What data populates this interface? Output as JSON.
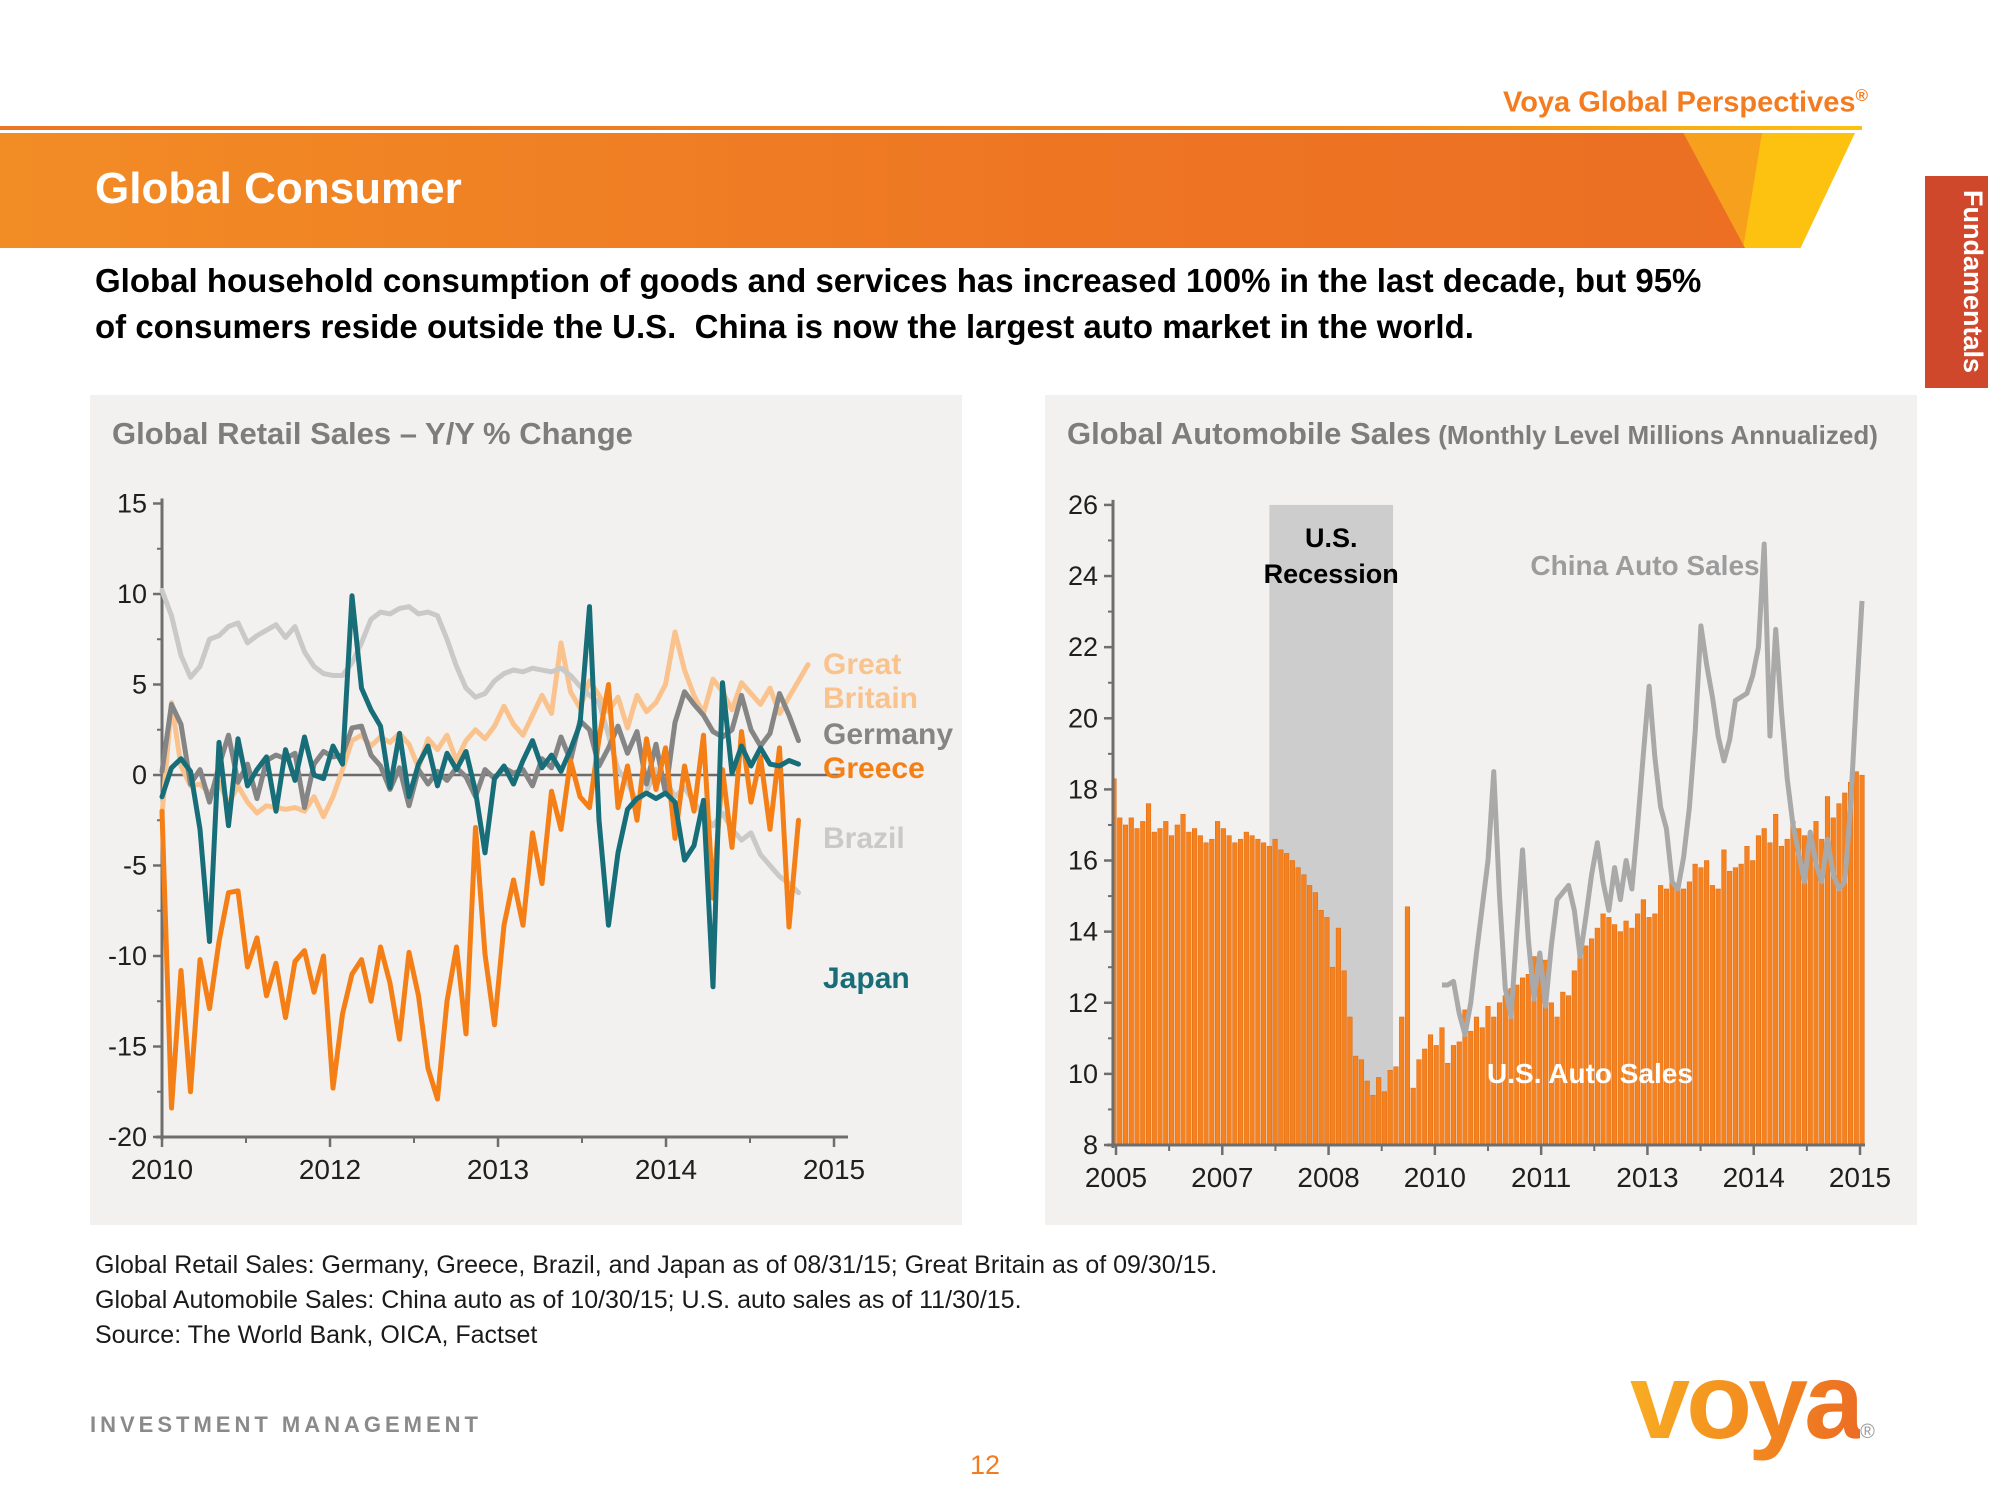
{
  "header": {
    "brand": "Voya Global Perspectives",
    "brand_reg": "®",
    "page_title": "Global Consumer",
    "side_tab": "Fundamentals",
    "subtitle": "Global household consumption of goods and services has increased 100% in the last decade, but 95%\nof consumers reside outside the U.S.  China is now the largest auto market in the world.",
    "accent_orange": "#EE7623",
    "accent_yellow": "#FDC110",
    "tab_color": "#D0482B"
  },
  "chart_data": [
    {
      "type": "line",
      "title": "Global Retail Sales – Y/Y % Change",
      "x_tick_labels": [
        "2010",
        "2012",
        "2013",
        "2014",
        "2015"
      ],
      "ylabel": "",
      "xlabel": "",
      "ylim": [
        -20,
        15
      ],
      "y_ticks": [
        15,
        10,
        5,
        0,
        -5,
        -10,
        -15,
        -20
      ],
      "grid": false,
      "zero_line": true,
      "legend_position": "right-outside",
      "series": [
        {
          "name": "Great Britain",
          "label_lines": [
            "Great",
            "Britain"
          ],
          "color": "#FAC38D",
          "values": [
            -2.2,
            4.0,
            0.5,
            -0.6,
            -0.5,
            -1.0,
            -0.4,
            -1.6,
            -0.6,
            -1.5,
            -2.1,
            -1.7,
            -1.8,
            -1.9,
            -1.8,
            -2.0,
            -1.2,
            -2.3,
            -1.2,
            0.3,
            1.9,
            2.2,
            1.6,
            2.1,
            1.8,
            2.3,
            1.7,
            0.4,
            2.0,
            1.4,
            2.2,
            0.8,
            1.9,
            2.5,
            2.0,
            2.7,
            3.8,
            2.8,
            2.2,
            3.3,
            4.4,
            3.4,
            7.3,
            4.6,
            3.7,
            5.2,
            4.4,
            3.5,
            4.3,
            2.6,
            4.4,
            3.5,
            4.0,
            5.0,
            7.9,
            5.8,
            4.4,
            3.4,
            5.3,
            4.6,
            3.6,
            5.1,
            4.5,
            3.9,
            4.8,
            3.4,
            4.3,
            5.2,
            6.1
          ]
        },
        {
          "name": "Brazil",
          "label_lines": [
            "Brazil"
          ],
          "color": "#C9C9C9",
          "values": [
            10.2,
            8.8,
            6.6,
            5.4,
            6.0,
            7.5,
            7.7,
            8.2,
            8.4,
            7.3,
            7.7,
            8.0,
            8.3,
            7.6,
            8.2,
            6.8,
            6.0,
            5.6,
            5.5,
            5.5,
            6.2,
            7.3,
            8.6,
            9.0,
            8.9,
            9.2,
            9.3,
            8.9,
            9.0,
            8.8,
            7.5,
            6.0,
            4.8,
            4.3,
            4.5,
            5.2,
            5.6,
            5.8,
            5.7,
            5.9,
            5.8,
            5.7,
            5.9,
            5.5,
            4.9,
            4.4,
            4.0,
            2.2,
            0.3,
            -0.4,
            -1.5,
            -0.9,
            0.3,
            -0.3,
            -1.2,
            -0.7,
            -1.5,
            -2.2,
            -2.8,
            -2.1,
            -3.0,
            -3.6,
            -3.2,
            -4.4,
            -5.0,
            -5.6,
            -6.0,
            -6.5
          ]
        },
        {
          "name": "Germany",
          "label_lines": [
            "Germany"
          ],
          "color": "#858585",
          "values": [
            0.2,
            3.9,
            2.8,
            -0.5,
            0.3,
            -1.5,
            0.5,
            2.2,
            -0.4,
            0.6,
            -1.3,
            0.8,
            1.1,
            0.9,
            1.2,
            -1.8,
            0.6,
            1.3,
            1.0,
            1.1,
            2.6,
            2.7,
            1.1,
            0.5,
            -0.8,
            0.4,
            -1.7,
            0.3,
            -0.5,
            0.2,
            -0.3,
            0.4,
            -0.1,
            -1.2,
            0.3,
            -0.2,
            0.4,
            0.1,
            0.3,
            -0.6,
            0.9,
            0.4,
            2.1,
            0.8,
            3.0,
            2.5,
            0.5,
            1.5,
            2.7,
            1.2,
            2.4,
            -0.5,
            1.7,
            -1.0,
            2.9,
            4.6,
            3.9,
            3.3,
            2.4,
            2.1,
            2.5,
            4.4,
            2.5,
            1.6,
            2.3,
            4.5,
            3.3,
            1.9
          ]
        },
        {
          "name": "Greece",
          "label_lines": [
            "Greece"
          ],
          "color": "#F57F17",
          "values": [
            -2.0,
            -18.4,
            -10.8,
            -17.5,
            -10.2,
            -12.9,
            -9.2,
            -6.5,
            -6.4,
            -10.6,
            -9.0,
            -12.2,
            -10.4,
            -13.4,
            -10.3,
            -9.7,
            -12.0,
            -10.0,
            -17.3,
            -13.2,
            -11.0,
            -10.2,
            -12.5,
            -9.5,
            -11.5,
            -14.6,
            -9.8,
            -12.2,
            -16.2,
            -17.9,
            -12.5,
            -9.5,
            -14.3,
            -2.9,
            -9.9,
            -13.8,
            -8.3,
            -5.8,
            -8.3,
            -3.2,
            -6.0,
            -0.9,
            -3.0,
            0.8,
            -1.2,
            -1.8,
            2.0,
            5.0,
            -1.8,
            0.5,
            -2.5,
            2.0,
            -0.8,
            1.5,
            -3.5,
            0.5,
            -2.0,
            2.2,
            -6.8,
            0.3,
            -4.0,
            2.4,
            -1.5,
            1.0,
            -3.0,
            1.5,
            -8.4,
            -2.5
          ]
        },
        {
          "name": "Japan",
          "label_lines": [
            "Japan"
          ],
          "color": "#176E78",
          "values": [
            -1.2,
            0.4,
            0.9,
            0.2,
            -3.0,
            -9.2,
            1.8,
            -2.8,
            2.0,
            -0.6,
            0.3,
            1.0,
            -2.0,
            1.4,
            -0.3,
            2.1,
            0.0,
            -0.2,
            1.6,
            0.6,
            9.9,
            4.8,
            3.6,
            2.7,
            -0.7,
            2.3,
            -1.2,
            0.6,
            1.6,
            -0.6,
            1.2,
            0.3,
            1.3,
            -0.9,
            -4.3,
            -0.2,
            0.5,
            -0.5,
            0.8,
            1.9,
            0.4,
            1.1,
            0.2,
            1.4,
            2.8,
            9.3,
            -2.5,
            -8.3,
            -4.3,
            -1.9,
            -1.3,
            -1.0,
            -1.3,
            -1.0,
            -1.5,
            -4.7,
            -3.9,
            -1.4,
            -11.7,
            5.1,
            0.1,
            1.6,
            0.5,
            1.5,
            0.6,
            0.5,
            0.8,
            0.6
          ]
        }
      ]
    },
    {
      "type": "bar+line",
      "title": "Global Automobile Sales",
      "title_suffix": " (Monthly Level Millions Annualized)",
      "x_tick_labels": [
        "2005",
        "2007",
        "2008",
        "2010",
        "2011",
        "2013",
        "2014",
        "2015"
      ],
      "ylim": [
        8,
        26
      ],
      "y_ticks": [
        26,
        24,
        22,
        20,
        18,
        16,
        14,
        12,
        10,
        8
      ],
      "grid": false,
      "recession_band": {
        "label_lines": [
          "U.S.",
          "Recession"
        ],
        "color": "#CDCDCD",
        "start_index": 27,
        "end_index": 48.5
      },
      "bars": {
        "name": "U.S. Auto Sales",
        "color": "#F5821F",
        "label_color": "#ffffff",
        "values": [
          18.3,
          17.2,
          17.0,
          17.2,
          16.9,
          17.1,
          17.6,
          16.8,
          16.9,
          17.1,
          16.7,
          17.0,
          17.3,
          16.8,
          16.9,
          16.7,
          16.5,
          16.6,
          17.1,
          16.9,
          16.7,
          16.5,
          16.6,
          16.8,
          16.7,
          16.6,
          16.5,
          16.4,
          16.6,
          16.3,
          16.2,
          16.0,
          15.8,
          15.6,
          15.3,
          15.1,
          14.6,
          14.4,
          13.0,
          14.1,
          12.9,
          11.6,
          10.5,
          10.4,
          9.8,
          9.4,
          9.9,
          9.5,
          10.1,
          10.2,
          11.6,
          14.7,
          9.6,
          10.4,
          10.7,
          11.1,
          10.8,
          11.3,
          10.3,
          10.8,
          10.9,
          11.8,
          11.2,
          11.6,
          11.3,
          11.9,
          11.6,
          12.0,
          12.2,
          12.4,
          12.5,
          12.7,
          12.8,
          13.3,
          13.1,
          13.2,
          12.0,
          11.6,
          12.3,
          12.2,
          12.9,
          13.3,
          13.6,
          13.8,
          14.1,
          14.5,
          14.4,
          14.2,
          14.0,
          14.3,
          14.1,
          14.5,
          14.9,
          14.4,
          14.5,
          15.3,
          15.2,
          15.4,
          15.3,
          15.2,
          15.4,
          15.9,
          15.8,
          16.0,
          15.3,
          15.2,
          16.3,
          15.7,
          15.8,
          15.9,
          16.4,
          16.0,
          16.7,
          16.9,
          16.5,
          17.3,
          16.4,
          16.6,
          17.1,
          16.9,
          16.7,
          16.3,
          17.1,
          16.6,
          17.8,
          17.2,
          17.6,
          17.9,
          18.2,
          18.5,
          18.4
        ]
      },
      "line": {
        "name": "China Auto Sales",
        "color": "#A9A9A9",
        "label_color": "#9C9C9C",
        "start_index": 57,
        "values": [
          12.5,
          12.5,
          12.6,
          11.7,
          11.1,
          12.0,
          13.4,
          14.7,
          16.0,
          18.5,
          15.0,
          12.4,
          11.6,
          14.0,
          16.3,
          13.8,
          12.1,
          13.4,
          11.9,
          13.6,
          14.9,
          15.1,
          15.3,
          14.6,
          13.3,
          14.4,
          15.6,
          16.5,
          15.4,
          14.6,
          15.8,
          14.9,
          16.0,
          15.2,
          17.0,
          19.0,
          20.9,
          18.9,
          17.5,
          16.9,
          15.4,
          15.2,
          16.1,
          17.5,
          19.6,
          22.6,
          21.5,
          20.6,
          19.5,
          18.8,
          19.4,
          20.5,
          20.6,
          20.7,
          21.2,
          22.0,
          24.9,
          19.5,
          22.5,
          20.2,
          18.3,
          17.0,
          16.2,
          15.4,
          16.8,
          15.9,
          15.4,
          16.6,
          15.6,
          15.2,
          15.4,
          17.5,
          20.5,
          23.3
        ]
      }
    }
  ],
  "footnotes": [
    "Global Retail Sales: Germany, Greece, Brazil, and Japan as of 08/31/15; Great Britain as of 09/30/15.",
    "Global Automobile Sales: China auto as of 10/30/15; U.S. auto sales as of  11/30/15.",
    "Source: The World Bank, OICA, Factset"
  ],
  "footer": {
    "org": "INVESTMENT MANAGEMENT",
    "page_number": "12",
    "logo_text": "voya",
    "logo_reg": "®"
  }
}
